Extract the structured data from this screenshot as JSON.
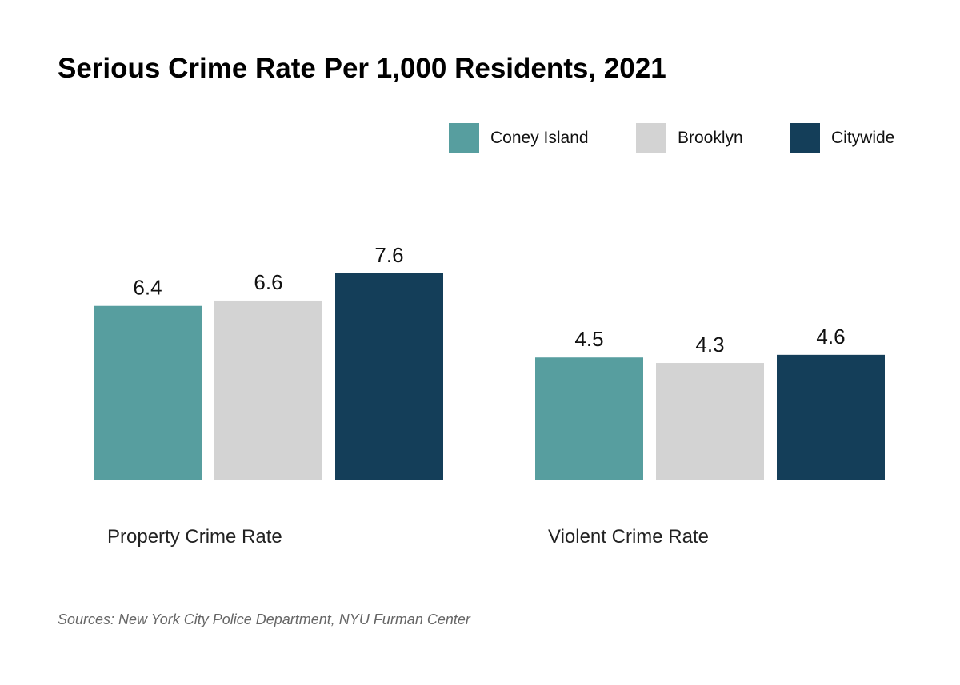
{
  "chart_data": {
    "type": "bar",
    "title": "Serious Crime Rate Per 1,000 Residents, 2021",
    "categories": [
      "Property Crime Rate",
      "Violent Crime Rate"
    ],
    "series": [
      {
        "name": "Coney Island",
        "color": "#579e9f",
        "values": [
          6.4,
          4.5
        ]
      },
      {
        "name": "Brooklyn",
        "color": "#d3d3d3",
        "values": [
          6.6,
          4.3
        ]
      },
      {
        "name": "Citywide",
        "color": "#143e59",
        "values": [
          7.6,
          4.6
        ]
      }
    ],
    "xlabel": "",
    "ylabel": "",
    "ylim": [
      0,
      7.6
    ],
    "grid": false,
    "legend": "top-right",
    "data_labels": true,
    "source": "Sources: New York City Police Department, NYU Furman Center"
  }
}
